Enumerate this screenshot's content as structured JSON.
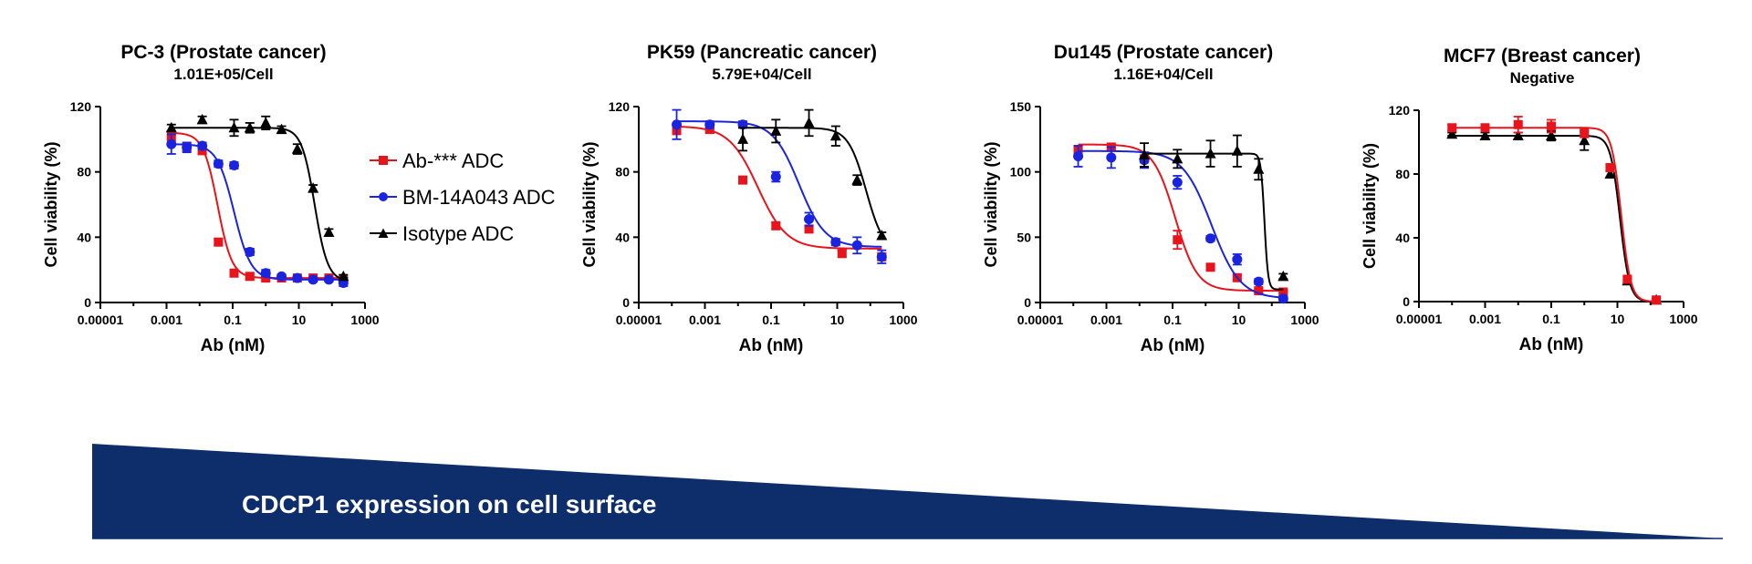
{
  "colors": {
    "ab": "#e8141c",
    "bm": "#1a24e0",
    "iso": "#000000",
    "banner": "#0d2d6b"
  },
  "legend": {
    "items": [
      {
        "label": "Ab-*** ADC",
        "color": "#e8141c",
        "marker": "square"
      },
      {
        "label": "BM-14A043 ADC",
        "color": "#1a24e0",
        "marker": "circle"
      },
      {
        "label": "Isotype ADC",
        "color": "#000000",
        "marker": "triangle"
      }
    ]
  },
  "banner": {
    "label": "CDCP1 expression on cell surface"
  },
  "chart_data": [
    {
      "type": "scatter",
      "title": "PC-3 (Prostate cancer)",
      "subtitle": "1.01E+05/Cell",
      "xlabel": "Ab (nM)",
      "ylabel": "Cell viability (%)",
      "xscale": "log",
      "xlim": [
        1e-05,
        1000
      ],
      "xticks": [
        "0.00001",
        "0.001",
        "0.1",
        "10",
        "1000"
      ],
      "ylim": [
        0,
        120
      ],
      "yticks": [
        "0",
        "40",
        "80",
        "120"
      ],
      "series": [
        {
          "key": "ab",
          "marker": "square",
          "x": [
            0.0014,
            0.0041,
            0.012,
            0.037,
            0.11,
            0.33,
            1,
            3,
            9,
            27,
            81,
            222
          ],
          "y": [
            102,
            95,
            93,
            37,
            18,
            16,
            15,
            15,
            15,
            15,
            15,
            14
          ],
          "err": [
            3,
            2,
            2,
            2,
            2,
            2,
            1,
            1,
            1,
            1,
            1,
            1
          ],
          "fit": {
            "bottom": 15,
            "top": 104,
            "ic50": 0.035,
            "hill": 2.0
          }
        },
        {
          "key": "bm",
          "marker": "circle",
          "x": [
            0.0014,
            0.0041,
            0.012,
            0.037,
            0.11,
            0.33,
            1,
            3,
            9,
            27,
            81,
            222
          ],
          "y": [
            97,
            95,
            96,
            85,
            84,
            31,
            18,
            16,
            15,
            14,
            14,
            12
          ],
          "err": [
            6,
            3,
            2,
            2,
            2,
            2,
            2,
            1,
            1,
            1,
            1,
            2
          ],
          "fit": {
            "bottom": 14,
            "top": 97,
            "ic50": 0.11,
            "hill": 1.7
          }
        },
        {
          "key": "iso",
          "marker": "triangle",
          "x": [
            0.0014,
            0.012,
            0.11,
            0.33,
            1,
            3,
            9,
            27,
            81,
            222
          ],
          "y": [
            107,
            112,
            107,
            107,
            110,
            106,
            94,
            70,
            43,
            16
          ],
          "err": [
            2,
            2,
            5,
            3,
            4,
            2,
            3,
            2,
            2,
            1
          ],
          "fit": {
            "bottom": 13,
            "top": 107,
            "ic50": 30,
            "hill": 2.2
          }
        }
      ]
    },
    {
      "type": "scatter",
      "title": "PK59 (Pancreatic cancer)",
      "subtitle": "5.79E+04/Cell",
      "xlabel": "Ab (nM)",
      "ylabel": "Cell viability (%)",
      "xscale": "log",
      "xlim": [
        1e-05,
        1000
      ],
      "xticks": [
        "0.00001",
        "0.001",
        "0.1",
        "10",
        "1000"
      ],
      "ylim": [
        0,
        120
      ],
      "yticks": [
        "0",
        "40",
        "80",
        "120"
      ],
      "series": [
        {
          "key": "ab",
          "marker": "square",
          "x": [
            0.00014,
            0.0014,
            0.014,
            0.14,
            1.4,
            14,
            222
          ],
          "y": [
            106,
            106,
            75,
            47,
            45,
            30,
            28
          ],
          "err": [
            3,
            2,
            2,
            2,
            2,
            2,
            2
          ],
          "fit": {
            "bottom": 33,
            "top": 108,
            "ic50": 0.04,
            "hill": 1.0
          }
        },
        {
          "key": "bm",
          "marker": "circle",
          "x": [
            0.00014,
            0.0014,
            0.014,
            0.14,
            1.4,
            9,
            40,
            222
          ],
          "y": [
            109,
            109,
            109,
            77,
            51,
            37,
            35,
            28
          ],
          "err": [
            9,
            2,
            2,
            3,
            4,
            2,
            5,
            4
          ],
          "fit": {
            "bottom": 34,
            "top": 111,
            "ic50": 0.7,
            "hill": 1.1
          }
        },
        {
          "key": "iso",
          "marker": "triangle",
          "x": [
            0.014,
            0.14,
            1.4,
            9,
            40,
            222
          ],
          "y": [
            100,
            105,
            110,
            102,
            75,
            41
          ],
          "err": [
            7,
            7,
            8,
            6,
            3,
            2
          ],
          "fit": {
            "bottom": 30,
            "top": 107,
            "ic50": 75,
            "hill": 1.6
          }
        }
      ]
    },
    {
      "type": "scatter",
      "title": "Du145 (Prostate cancer)",
      "subtitle": "1.16E+04/Cell",
      "xlabel": "Ab (nM)",
      "ylabel": "Cell viability (%)",
      "xscale": "log",
      "xlim": [
        1e-05,
        1000
      ],
      "xticks": [
        "0.00001",
        "0.001",
        "0.1",
        "10",
        "1000"
      ],
      "ylim": [
        0,
        150
      ],
      "yticks": [
        "0",
        "50",
        "100",
        "150"
      ],
      "series": [
        {
          "key": "ab",
          "marker": "square",
          "x": [
            0.00014,
            0.0014,
            0.014,
            0.14,
            1.4,
            9,
            40,
            222
          ],
          "y": [
            117,
            119,
            110,
            48,
            27,
            19,
            9,
            8
          ],
          "err": [
            3,
            2,
            2,
            7,
            2,
            2,
            2,
            1
          ],
          "fit": {
            "bottom": 9,
            "top": 121,
            "ic50": 0.12,
            "hill": 1.3
          }
        },
        {
          "key": "bm",
          "marker": "circle",
          "x": [
            0.00014,
            0.0014,
            0.014,
            0.14,
            1.4,
            9,
            40,
            222
          ],
          "y": [
            112,
            111,
            109,
            92,
            49,
            33,
            16,
            3
          ],
          "err": [
            8,
            8,
            6,
            5,
            2,
            4,
            2,
            2
          ],
          "fit": {
            "bottom": 3,
            "top": 116,
            "ic50": 1.5,
            "hill": 1.0
          }
        },
        {
          "key": "iso",
          "marker": "triangle",
          "x": [
            0.014,
            0.14,
            1.4,
            9,
            40,
            222
          ],
          "y": [
            113,
            110,
            114,
            116,
            102,
            20
          ],
          "err": [
            9,
            7,
            10,
            12,
            8,
            2
          ],
          "fit": {
            "bottom": 10,
            "top": 114,
            "ic50": 60,
            "hill": 8
          }
        }
      ]
    },
    {
      "type": "scatter",
      "title": "MCF7 (Breast cancer)",
      "subtitle": "Negative",
      "xlabel": "Ab (nM)",
      "ylabel": "Cell viability (%)",
      "xscale": "log",
      "xlim": [
        1e-05,
        1000
      ],
      "xticks": [
        "0.00001",
        "0.001",
        "0.1",
        "10",
        "1000"
      ],
      "ylim": [
        0,
        120
      ],
      "yticks": [
        "0",
        "40",
        "80",
        "120"
      ],
      "series": [
        {
          "key": "iso",
          "marker": "triangle",
          "x": [
            0.0001,
            0.001,
            0.01,
            0.1,
            1,
            6,
            20,
            150
          ],
          "y": [
            105,
            104,
            104,
            104,
            101,
            80,
            13,
            1
          ],
          "err": [
            1,
            2,
            2,
            3,
            6,
            2,
            1,
            1
          ],
          "fit": {
            "bottom": 0,
            "top": 104,
            "ic50": 12,
            "hill": 3.0
          }
        },
        {
          "key": "ab",
          "marker": "square",
          "x": [
            0.0001,
            0.001,
            0.01,
            0.1,
            1,
            6,
            20,
            150
          ],
          "y": [
            109,
            109,
            111,
            110,
            106,
            84,
            14,
            1
          ],
          "err": [
            2,
            2,
            5,
            4,
            3,
            2,
            2,
            1
          ],
          "fit": {
            "bottom": 0,
            "top": 109,
            "ic50": 13,
            "hill": 3.0
          }
        }
      ]
    }
  ]
}
